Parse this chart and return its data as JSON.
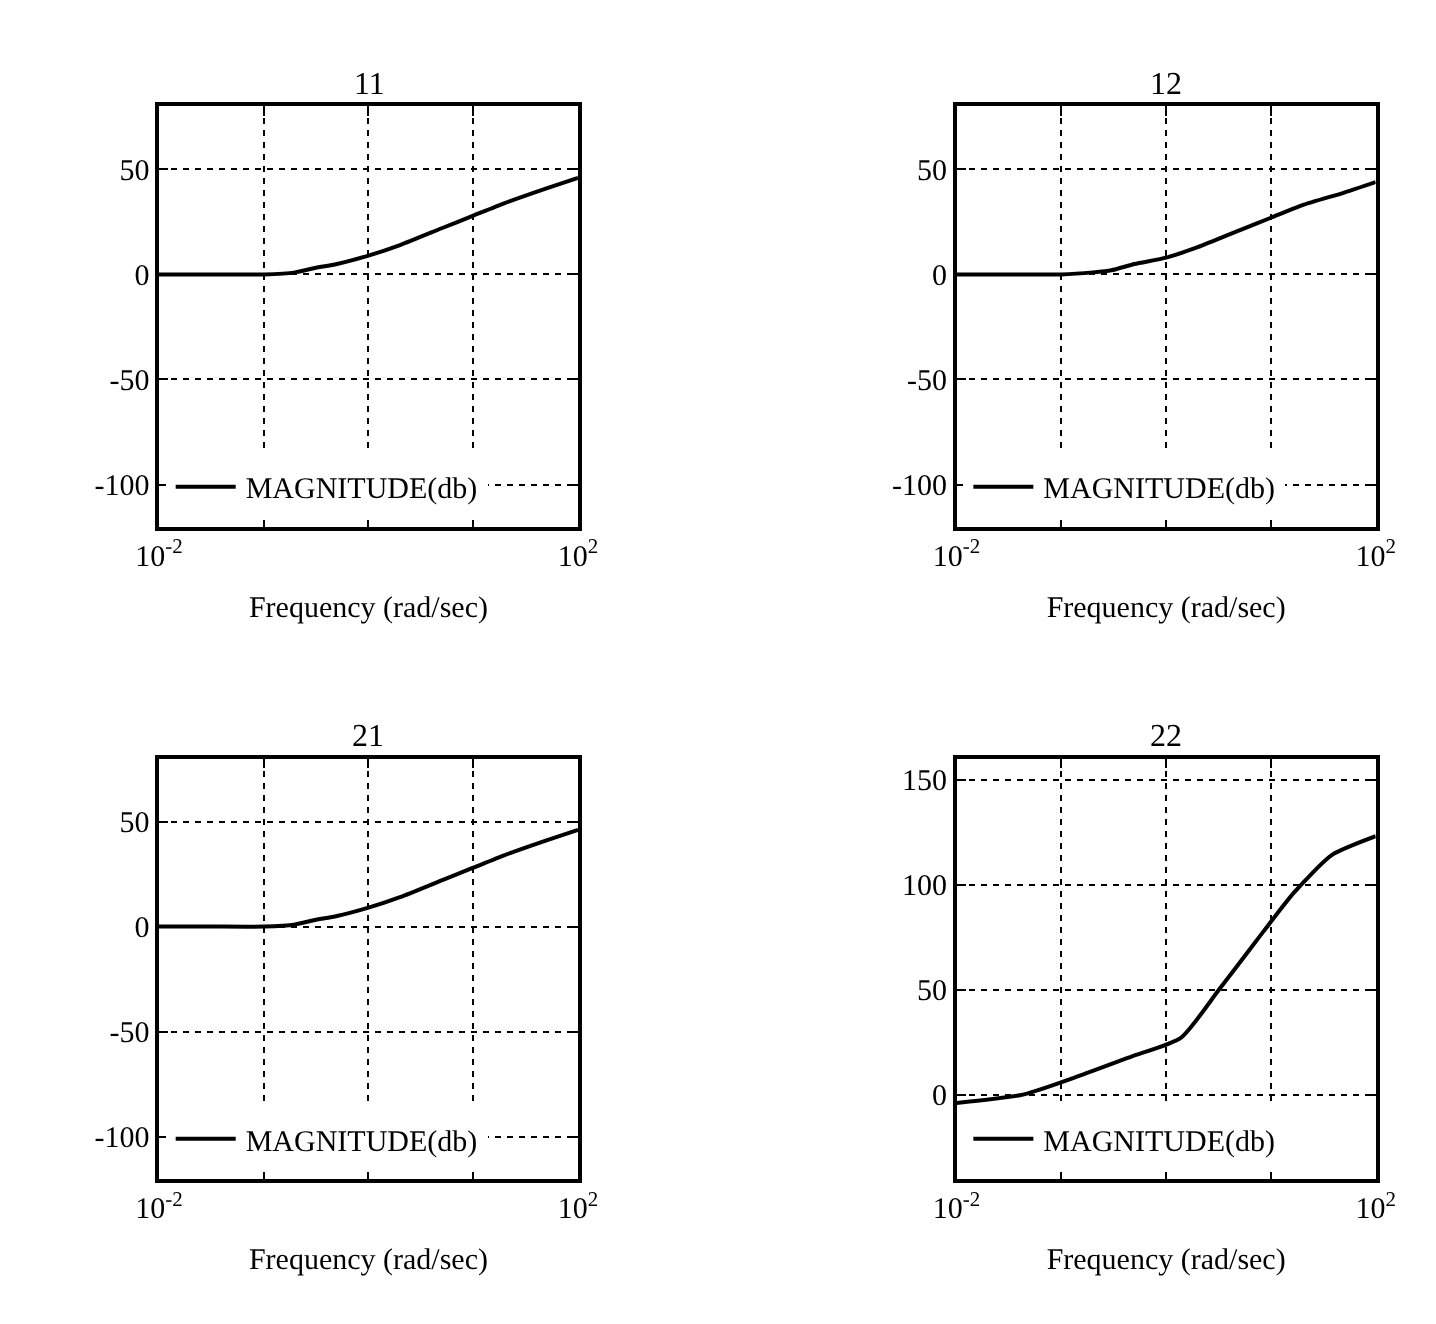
{
  "chart_data": [
    {
      "type": "line",
      "title": "11",
      "xlabel": "Frequency (rad/sec)",
      "log": "x",
      "grid": true,
      "legend": "bottom left",
      "xlim": [
        0.01,
        100
      ],
      "ylim": [
        -120,
        80
      ],
      "xticks": [
        {
          "value": 0.01,
          "label": "10$^{-2}$"
        },
        {
          "value": 0.1,
          "label": null
        },
        {
          "value": 1,
          "label": null
        },
        {
          "value": 10,
          "label": null
        },
        {
          "value": 100,
          "label": "10$^{2}$"
        }
      ],
      "yticks": [
        -100,
        -50,
        0,
        50
      ],
      "x": [
        0.01,
        0.03,
        0.1,
        0.2,
        0.3,
        0.5,
        1,
        2,
        5,
        10,
        20,
        50,
        100
      ],
      "series": [
        {
          "name": "MAGNITUDE(db)",
          "color": "#000000",
          "values": [
            0,
            0,
            0,
            1,
            3,
            5,
            9,
            14,
            22,
            28,
            34,
            41,
            46
          ]
        }
      ]
    },
    {
      "type": "line",
      "title": "12",
      "xlabel": "Frequency (rad/sec)",
      "log": "x",
      "grid": true,
      "legend": "bottom left",
      "xlim": [
        0.01,
        100
      ],
      "ylim": [
        -120,
        80
      ],
      "xticks": [
        {
          "value": 0.01,
          "label": "10$^{-2}$"
        },
        {
          "value": 0.1,
          "label": null
        },
        {
          "value": 1,
          "label": null
        },
        {
          "value": 10,
          "label": null
        },
        {
          "value": 100,
          "label": "10$^{2}$"
        }
      ],
      "yticks": [
        -100,
        -50,
        0,
        50
      ],
      "x": [
        0.01,
        0.03,
        0.1,
        0.2,
        0.3,
        0.5,
        1,
        2,
        5,
        10,
        20,
        50,
        100
      ],
      "series": [
        {
          "name": "MAGNITUDE(db)",
          "color": "#000000",
          "values": [
            0,
            0,
            0,
            1,
            2,
            5,
            8,
            13,
            21,
            27,
            33,
            39,
            44
          ]
        }
      ]
    },
    {
      "type": "line",
      "title": "21",
      "xlabel": "Frequency (rad/sec)",
      "log": "x",
      "grid": true,
      "legend": "bottom left",
      "xlim": [
        0.01,
        100
      ],
      "ylim": [
        -120,
        80
      ],
      "xticks": [
        {
          "value": 0.01,
          "label": "10$^{-2}$"
        },
        {
          "value": 0.1,
          "label": null
        },
        {
          "value": 1,
          "label": null
        },
        {
          "value": 10,
          "label": null
        },
        {
          "value": 100,
          "label": "10$^{2}$"
        }
      ],
      "yticks": [
        -100,
        -50,
        0,
        50
      ],
      "x": [
        0.01,
        0.03,
        0.1,
        0.2,
        0.3,
        0.5,
        1,
        2,
        5,
        10,
        20,
        50,
        100
      ],
      "series": [
        {
          "name": "MAGNITUDE(db)",
          "color": "#000000",
          "values": [
            0,
            0,
            0,
            1,
            3,
            5,
            9,
            14,
            22,
            28,
            34,
            41,
            46
          ]
        }
      ]
    },
    {
      "type": "line",
      "title": "22",
      "xlabel": "Frequency (rad/sec)",
      "log": "x",
      "grid": true,
      "legend": "bottom left",
      "xlim": [
        0.01,
        100
      ],
      "ylim": [
        -40,
        160
      ],
      "xticks": [
        {
          "value": 0.01,
          "label": "10$^{-2}$"
        },
        {
          "value": 0.1,
          "label": null
        },
        {
          "value": 1,
          "label": null
        },
        {
          "value": 10,
          "label": null
        },
        {
          "value": 100,
          "label": "10$^{2}$"
        }
      ],
      "yticks": [
        0,
        50,
        100,
        150
      ],
      "x": [
        0.01,
        0.043,
        0.15,
        0.46,
        1.38,
        3.2,
        7.2,
        16.5,
        38,
        100
      ],
      "series": [
        {
          "name": "MAGNITUDE(db)",
          "color": "#000000",
          "values": [
            -4,
            0,
            9,
            18,
            27,
            50,
            73,
            96,
            114,
            123
          ]
        }
      ]
    }
  ]
}
